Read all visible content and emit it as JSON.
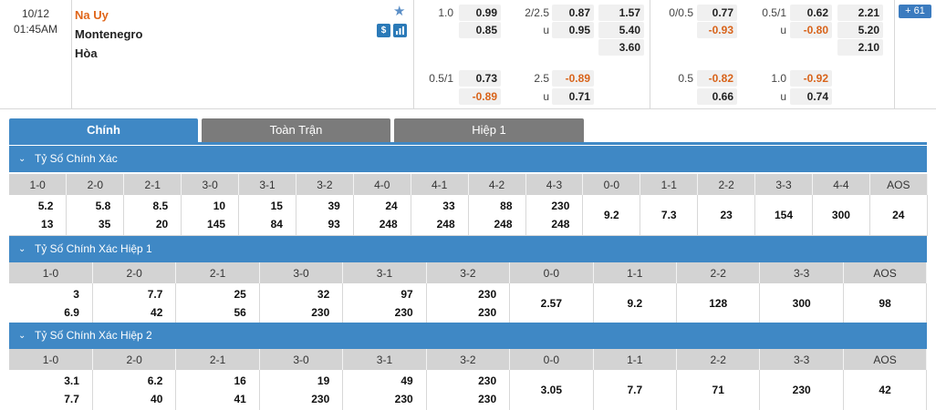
{
  "match": {
    "date": "10/12",
    "time": "01:45AM",
    "home": "Na Uy",
    "away": "Montenegro",
    "draw": "Hòa",
    "count": "61"
  },
  "odds": {
    "ft_handicap": {
      "line": "1.0",
      "home": "0.99",
      "away": "0.85"
    },
    "ft_ou": {
      "line": "2/2.5",
      "over": "0.87",
      "under_label": "u",
      "under": "0.95"
    },
    "ft_1x2": {
      "home": "1.57",
      "away": "5.40",
      "draw": "3.60"
    },
    "ft_handicap2": {
      "line": "0.5/1",
      "home": "0.73",
      "away": "-0.89"
    },
    "ft_ou2": {
      "line": "2.5",
      "over": "-0.89",
      "under_label": "u",
      "under": "0.71"
    },
    "h1_handicap": {
      "line": "0/0.5",
      "home": "0.77",
      "away": "-0.93"
    },
    "h1_ou": {
      "line": "0.5/1",
      "over": "0.62",
      "under_label": "u",
      "under": "-0.80"
    },
    "h1_1x2": {
      "home": "2.21",
      "away": "5.20",
      "draw": "2.10"
    },
    "h1_handicap2": {
      "line": "0.5",
      "home": "-0.82",
      "away": "0.66"
    },
    "h1_ou2": {
      "line": "1.0",
      "over": "-0.92",
      "under_label": "u",
      "under": "0.74"
    }
  },
  "tabs": [
    "Chính",
    "Toàn Trận",
    "Hiệp 1"
  ],
  "sections": [
    {
      "title": "Tỷ Số Chính Xác",
      "headers": [
        "1-0",
        "2-0",
        "2-1",
        "3-0",
        "3-1",
        "3-2",
        "4-0",
        "4-1",
        "4-2",
        "4-3",
        "0-0",
        "1-1",
        "2-2",
        "3-3",
        "4-4",
        "AOS"
      ],
      "home": [
        "5.2",
        "5.8",
        "8.5",
        "10",
        "15",
        "39",
        "24",
        "33",
        "88",
        "230"
      ],
      "away": [
        "13",
        "35",
        "20",
        "145",
        "84",
        "93",
        "248",
        "248",
        "248",
        "248"
      ],
      "single": [
        "9.2",
        "7.3",
        "23",
        "154",
        "300",
        "24"
      ]
    },
    {
      "title": "Tỷ Số Chính Xác Hiệp 1",
      "headers": [
        "1-0",
        "2-0",
        "2-1",
        "3-0",
        "3-1",
        "3-2",
        "0-0",
        "1-1",
        "2-2",
        "3-3",
        "AOS"
      ],
      "home": [
        "3",
        "7.7",
        "25",
        "32",
        "97",
        "230"
      ],
      "away": [
        "6.9",
        "42",
        "56",
        "230",
        "230",
        "230"
      ],
      "single": [
        "2.57",
        "9.2",
        "128",
        "300",
        "98"
      ]
    },
    {
      "title": "Tỷ Số Chính Xác Hiệp 2",
      "headers": [
        "1-0",
        "2-0",
        "2-1",
        "3-0",
        "3-1",
        "3-2",
        "0-0",
        "1-1",
        "2-2",
        "3-3",
        "AOS"
      ],
      "home": [
        "3.1",
        "6.2",
        "16",
        "19",
        "49",
        "230"
      ],
      "away": [
        "7.7",
        "40",
        "41",
        "230",
        "230",
        "230"
      ],
      "single": [
        "3.05",
        "7.7",
        "71",
        "230",
        "42"
      ]
    }
  ],
  "colors": {
    "accent": "#3f88c5",
    "negative": "#d8631a",
    "home_team": "#e0661a",
    "tab_inactive": "#7b7b7b"
  },
  "icons": {
    "favorite": "star-icon",
    "money": "dollar-icon",
    "stats": "bar-chart-icon",
    "collapse": "chevron-down-icon"
  }
}
